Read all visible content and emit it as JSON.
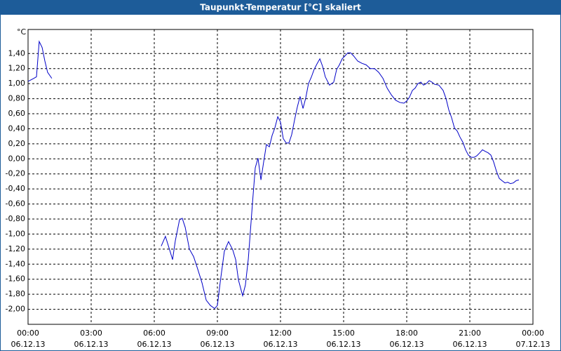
{
  "chart_data": {
    "type": "line",
    "title": "Taupunkt-Temperatur [°C] skaliert",
    "y_label": "°C",
    "xlim": [
      0,
      24
    ],
    "ylim": [
      -2.2,
      1.72
    ],
    "xticks": [
      {
        "value": 0,
        "label": "00:00",
        "date": "06.12.13"
      },
      {
        "value": 3,
        "label": "03:00",
        "date": "06.12.13"
      },
      {
        "value": 6,
        "label": "06:00",
        "date": "06.12.13"
      },
      {
        "value": 9,
        "label": "09:00",
        "date": "06.12.13"
      },
      {
        "value": 12,
        "label": "12:00",
        "date": "06.12.13"
      },
      {
        "value": 15,
        "label": "15:00",
        "date": "06.12.13"
      },
      {
        "value": 18,
        "label": "18:00",
        "date": "06.12.13"
      },
      {
        "value": 21,
        "label": "21:00",
        "date": "06.12.13"
      },
      {
        "value": 24,
        "label": "00:00",
        "date": "07.12.13"
      }
    ],
    "yticks": [
      {
        "value": 1.4,
        "label": "1,40"
      },
      {
        "value": 1.2,
        "label": "1,20"
      },
      {
        "value": 1.0,
        "label": "1,00"
      },
      {
        "value": 0.8,
        "label": "0,80"
      },
      {
        "value": 0.6,
        "label": "0,60"
      },
      {
        "value": 0.4,
        "label": "0,40"
      },
      {
        "value": 0.2,
        "label": "0,20"
      },
      {
        "value": 0,
        "label": "0,00"
      },
      {
        "value": -0.2,
        "label": "-0,20"
      },
      {
        "value": -0.4,
        "label": "-0,40"
      },
      {
        "value": -0.6,
        "label": "-0,60"
      },
      {
        "value": -0.8,
        "label": "-0,80"
      },
      {
        "value": -1.0,
        "label": "-1,00"
      },
      {
        "value": -1.2,
        "label": "-1,20"
      },
      {
        "value": -1.4,
        "label": "-1,40"
      },
      {
        "value": -1.6,
        "label": "-1,60"
      },
      {
        "value": -1.8,
        "label": "-1,80"
      },
      {
        "value": -2.0,
        "label": "-2,00"
      }
    ],
    "grid": true,
    "color": "#0000c8",
    "x": [
      0,
      0.27,
      0.4,
      0.53,
      0.67,
      0.8,
      0.93,
      1.13,
      null,
      6.33,
      6.53,
      6.73,
      6.87,
      7.0,
      7.2,
      7.33,
      7.47,
      7.67,
      7.87,
      8.07,
      8.27,
      8.47,
      8.67,
      8.87,
      9.0,
      9.13,
      9.33,
      9.53,
      9.73,
      9.87,
      10.0,
      10.2,
      10.33,
      10.47,
      10.67,
      10.8,
      10.93,
      11.07,
      11.2,
      11.33,
      11.47,
      11.6,
      11.73,
      11.87,
      12.0,
      12.13,
      12.27,
      12.4,
      12.53,
      12.67,
      12.8,
      12.93,
      13.07,
      13.2,
      13.33,
      13.47,
      13.6,
      13.73,
      13.87,
      14.0,
      14.13,
      14.33,
      14.53,
      14.67,
      14.8,
      14.93,
      15.07,
      15.2,
      15.33,
      15.47,
      15.67,
      15.87,
      16.07,
      16.27,
      16.47,
      16.67,
      16.87,
      17.07,
      17.27,
      17.47,
      17.67,
      17.87,
      18.0,
      18.13,
      18.27,
      18.4,
      18.53,
      18.67,
      18.8,
      18.93,
      19.07,
      19.2,
      19.33,
      19.53,
      19.73,
      19.87,
      20.0,
      20.13,
      20.27,
      20.4,
      20.53,
      20.67,
      20.8,
      20.93,
      21.07,
      21.2,
      21.33,
      21.47,
      21.6,
      21.73,
      21.87,
      22.0,
      22.13,
      22.27,
      22.4,
      22.53,
      22.67,
      22.8,
      22.93,
      23.07,
      23.2,
      23.33
    ],
    "values": [
      1.03,
      1.07,
      1.09,
      1.56,
      1.48,
      1.3,
      1.15,
      1.07,
      null,
      -1.16,
      -1.03,
      -1.21,
      -1.34,
      -1.09,
      -0.81,
      -0.79,
      -0.91,
      -1.2,
      -1.3,
      -1.47,
      -1.65,
      -1.88,
      -1.95,
      -1.99,
      -1.95,
      -1.65,
      -1.23,
      -1.1,
      -1.21,
      -1.34,
      -1.61,
      -1.82,
      -1.68,
      -1.33,
      -0.58,
      -0.12,
      0.01,
      -0.28,
      -0.04,
      0.19,
      0.16,
      0.31,
      0.41,
      0.56,
      0.49,
      0.27,
      0.21,
      0.21,
      0.32,
      0.52,
      0.69,
      0.83,
      0.67,
      0.81,
      1.0,
      1.09,
      1.19,
      1.26,
      1.33,
      1.23,
      1.09,
      0.98,
      1.02,
      1.19,
      1.25,
      1.33,
      1.37,
      1.41,
      1.41,
      1.37,
      1.3,
      1.27,
      1.25,
      1.2,
      1.2,
      1.15,
      1.07,
      0.94,
      0.85,
      0.78,
      0.75,
      0.74,
      0.77,
      0.82,
      0.91,
      0.94,
      1.0,
      1.02,
      0.98,
      1.0,
      1.04,
      1.02,
      0.99,
      0.98,
      0.91,
      0.8,
      0.65,
      0.55,
      0.41,
      0.37,
      0.29,
      0.22,
      0.12,
      0.05,
      0.02,
      0.02,
      0.04,
      0.08,
      0.12,
      0.1,
      0.08,
      0.05,
      -0.04,
      -0.17,
      -0.26,
      -0.29,
      -0.32,
      -0.31,
      -0.33,
      -0.32,
      -0.29,
      -0.28
    ]
  }
}
